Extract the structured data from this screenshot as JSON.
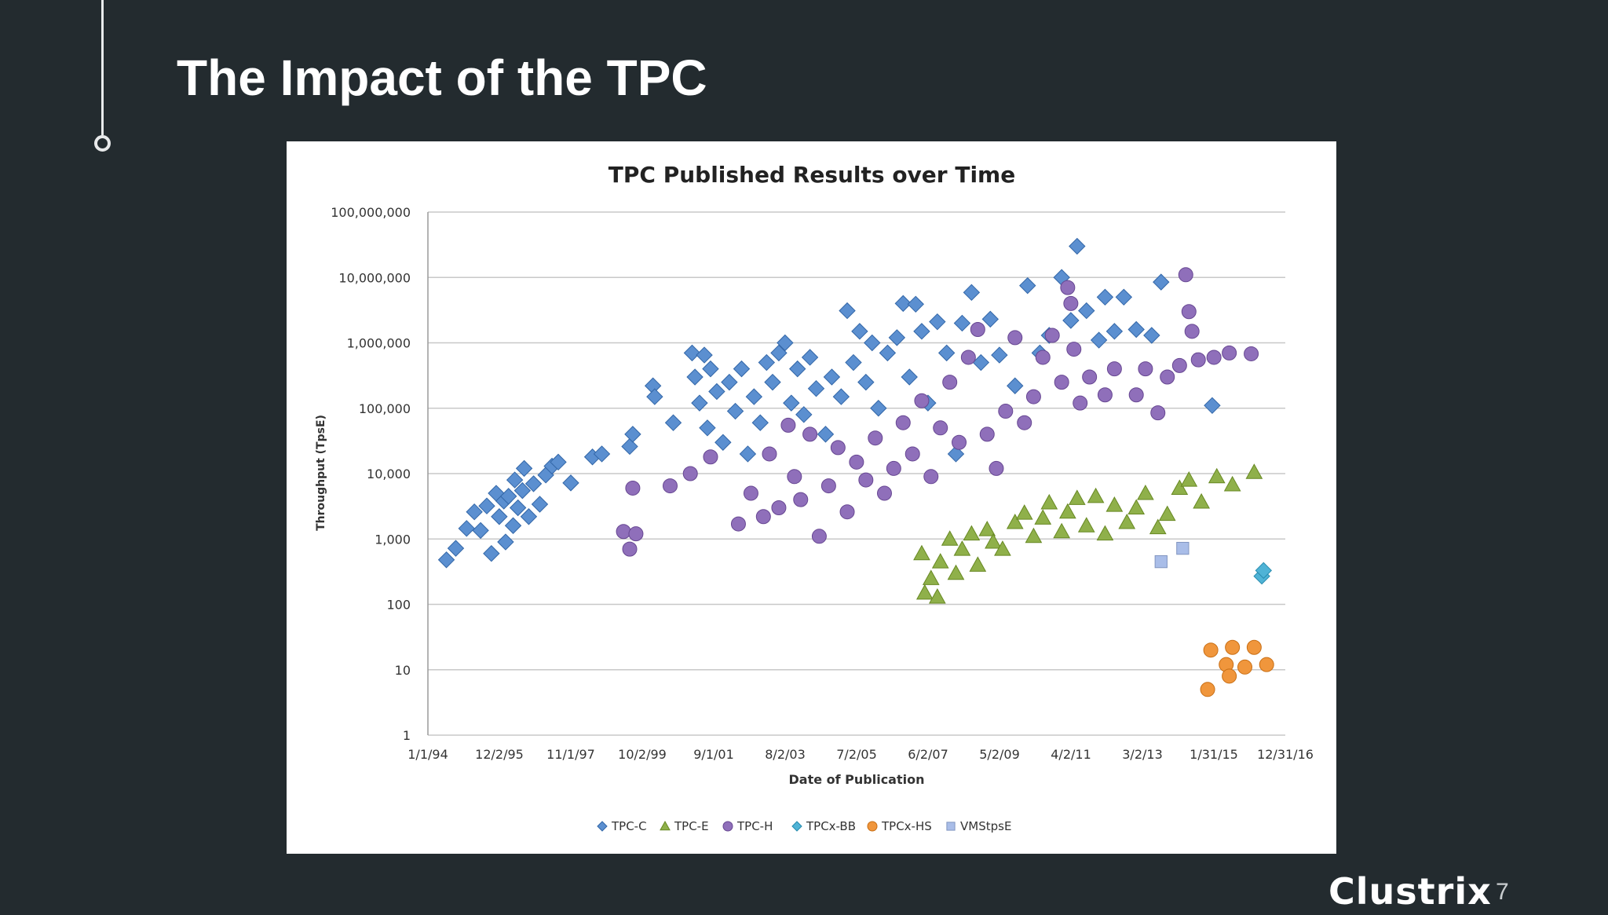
{
  "slide": {
    "title": "The Impact of the TPC",
    "logo_text": "Clustrix",
    "page_number": "7"
  },
  "colors": {
    "background": "#232b2f",
    "title": "#ffffff",
    "grid": "#c8c8c8"
  },
  "chart_data": {
    "type": "scatter",
    "title": "TPC Published Results over Time",
    "xlabel": "Date of Publication",
    "ylabel": "Throughput (TpsE)",
    "yscale": "log",
    "ylim": [
      1,
      100000000
    ],
    "xlim": [
      "1994-01-01",
      "2016-12-31"
    ],
    "grid": "horizontal",
    "legend_position": "bottom",
    "x_tick_labels": [
      "1/1/94",
      "12/2/95",
      "11/1/97",
      "10/2/99",
      "9/1/01",
      "8/2/03",
      "7/2/05",
      "6/2/07",
      "5/2/09",
      "4/2/11",
      "3/2/13",
      "1/31/15",
      "12/31/16"
    ],
    "y_tick_labels": [
      "1",
      "10",
      "100",
      "1,000",
      "10,000",
      "100,000",
      "1,000,000",
      "10,000,000",
      "100,000,000"
    ],
    "series": [
      {
        "name": "TPC-C",
        "marker": "diamond",
        "color": "#5b8fd0",
        "points": [
          [
            "1994-07-01",
            480
          ],
          [
            "1994-10-01",
            720
          ],
          [
            "1995-01-15",
            1450
          ],
          [
            "1995-04-01",
            2600
          ],
          [
            "1995-06-01",
            1350
          ],
          [
            "1995-08-01",
            3200
          ],
          [
            "1995-09-15",
            600
          ],
          [
            "1995-11-01",
            5000
          ],
          [
            "1995-12-01",
            2200
          ],
          [
            "1996-01-15",
            3800
          ],
          [
            "1996-02-01",
            900
          ],
          [
            "1996-03-01",
            4500
          ],
          [
            "1996-04-15",
            1600
          ],
          [
            "1996-05-01",
            8000
          ],
          [
            "1996-06-01",
            3000
          ],
          [
            "1996-07-15",
            5500
          ],
          [
            "1996-08-01",
            12000
          ],
          [
            "1996-09-15",
            2200
          ],
          [
            "1996-11-01",
            7000
          ],
          [
            "1997-01-01",
            3400
          ],
          [
            "1997-03-01",
            9500
          ],
          [
            "1997-05-01",
            13000
          ],
          [
            "1997-07-01",
            15000
          ],
          [
            "1997-11-01",
            7200
          ],
          [
            "1998-06-01",
            18000
          ],
          [
            "1998-09-01",
            20000
          ],
          [
            "1999-06-01",
            26000
          ],
          [
            "1999-07-01",
            40000
          ],
          [
            "2000-01-15",
            220000
          ],
          [
            "2000-02-01",
            150000
          ],
          [
            "2000-08-01",
            60000
          ],
          [
            "2001-02-01",
            700000
          ],
          [
            "2001-03-01",
            300000
          ],
          [
            "2001-04-15",
            120000
          ],
          [
            "2001-06-01",
            650000
          ],
          [
            "2001-07-01",
            50000
          ],
          [
            "2001-08-01",
            400000
          ],
          [
            "2001-10-01",
            180000
          ],
          [
            "2001-12-01",
            30000
          ],
          [
            "2002-02-01",
            250000
          ],
          [
            "2002-04-01",
            90000
          ],
          [
            "2002-06-01",
            400000
          ],
          [
            "2002-08-01",
            20000
          ],
          [
            "2002-10-01",
            150000
          ],
          [
            "2002-12-01",
            60000
          ],
          [
            "2003-02-01",
            500000
          ],
          [
            "2003-04-01",
            250000
          ],
          [
            "2003-06-01",
            700000
          ],
          [
            "2003-08-01",
            1000000
          ],
          [
            "2003-10-01",
            120000
          ],
          [
            "2003-12-01",
            400000
          ],
          [
            "2004-02-01",
            80000
          ],
          [
            "2004-04-01",
            600000
          ],
          [
            "2004-06-01",
            200000
          ],
          [
            "2004-09-01",
            40000
          ],
          [
            "2004-11-01",
            300000
          ],
          [
            "2005-02-01",
            150000
          ],
          [
            "2005-04-01",
            3100000
          ],
          [
            "2005-06-01",
            500000
          ],
          [
            "2005-08-01",
            1500000
          ],
          [
            "2005-10-01",
            250000
          ],
          [
            "2005-12-01",
            1000000
          ],
          [
            "2006-02-01",
            100000
          ],
          [
            "2006-05-01",
            700000
          ],
          [
            "2006-08-01",
            1200000
          ],
          [
            "2006-10-01",
            4000000
          ],
          [
            "2006-12-01",
            300000
          ],
          [
            "2007-02-01",
            3900000
          ],
          [
            "2007-04-01",
            1500000
          ],
          [
            "2007-06-01",
            120000
          ],
          [
            "2007-09-01",
            2100000
          ],
          [
            "2007-12-01",
            700000
          ],
          [
            "2008-03-01",
            20000
          ],
          [
            "2008-05-01",
            2000000
          ],
          [
            "2008-08-01",
            5900000
          ],
          [
            "2008-11-01",
            500000
          ],
          [
            "2009-02-01",
            2300000
          ],
          [
            "2009-05-01",
            650000
          ],
          [
            "2009-10-01",
            220000
          ],
          [
            "2010-02-01",
            7500000
          ],
          [
            "2010-06-01",
            700000
          ],
          [
            "2010-09-01",
            1300000
          ],
          [
            "2011-01-01",
            10000000
          ],
          [
            "2011-04-01",
            2200000
          ],
          [
            "2011-06-01",
            30000000
          ],
          [
            "2011-09-01",
            3100000
          ],
          [
            "2012-01-01",
            1100000
          ],
          [
            "2012-03-01",
            5000000
          ],
          [
            "2012-06-01",
            1500000
          ],
          [
            "2012-09-01",
            5000000
          ],
          [
            "2013-01-01",
            1600000
          ],
          [
            "2013-06-01",
            1300000
          ],
          [
            "2013-09-01",
            8500000
          ],
          [
            "2015-01-15",
            110000
          ]
        ]
      },
      {
        "name": "TPC-E",
        "marker": "triangle",
        "color": "#8fb04a",
        "points": [
          [
            "2007-04-01",
            600
          ],
          [
            "2007-05-01",
            150
          ],
          [
            "2007-07-01",
            250
          ],
          [
            "2007-09-01",
            130
          ],
          [
            "2007-10-01",
            450
          ],
          [
            "2008-01-01",
            1000
          ],
          [
            "2008-03-01",
            300
          ],
          [
            "2008-05-01",
            700
          ],
          [
            "2008-08-01",
            1200
          ],
          [
            "2008-10-01",
            400
          ],
          [
            "2009-01-01",
            1400
          ],
          [
            "2009-03-01",
            900
          ],
          [
            "2009-06-01",
            700
          ],
          [
            "2009-10-01",
            1800
          ],
          [
            "2010-01-01",
            2500
          ],
          [
            "2010-04-01",
            1100
          ],
          [
            "2010-07-01",
            2100
          ],
          [
            "2010-09-01",
            3600
          ],
          [
            "2011-01-01",
            1300
          ],
          [
            "2011-03-01",
            2600
          ],
          [
            "2011-06-01",
            4200
          ],
          [
            "2011-09-01",
            1600
          ],
          [
            "2011-12-01",
            4500
          ],
          [
            "2012-03-01",
            1200
          ],
          [
            "2012-06-01",
            3300
          ],
          [
            "2012-10-01",
            1800
          ],
          [
            "2013-01-01",
            3000
          ],
          [
            "2013-04-01",
            5000
          ],
          [
            "2013-08-01",
            1500
          ],
          [
            "2013-11-01",
            2400
          ],
          [
            "2014-03-01",
            6000
          ],
          [
            "2014-06-01",
            8000
          ],
          [
            "2014-10-01",
            3700
          ],
          [
            "2015-03-01",
            9000
          ],
          [
            "2015-08-01",
            6800
          ],
          [
            "2016-03-01",
            10500
          ]
        ]
      },
      {
        "name": "TPC-H",
        "marker": "circle",
        "color": "#8f6fba",
        "points": [
          [
            "1999-04-01",
            1300
          ],
          [
            "1999-06-01",
            700
          ],
          [
            "1999-07-01",
            6000
          ],
          [
            "1999-08-01",
            1200
          ],
          [
            "2000-07-01",
            6500
          ],
          [
            "2001-01-15",
            10000
          ],
          [
            "2001-08-01",
            18000
          ],
          [
            "2002-05-01",
            1700
          ],
          [
            "2002-09-01",
            5000
          ],
          [
            "2003-01-01",
            2200
          ],
          [
            "2003-03-01",
            20000
          ],
          [
            "2003-06-01",
            3000
          ],
          [
            "2003-09-01",
            55000
          ],
          [
            "2003-11-01",
            9000
          ],
          [
            "2004-01-01",
            4000
          ],
          [
            "2004-04-01",
            40000
          ],
          [
            "2004-07-01",
            1100
          ],
          [
            "2004-10-01",
            6500
          ],
          [
            "2005-01-01",
            25000
          ],
          [
            "2005-04-01",
            2600
          ],
          [
            "2005-07-01",
            15000
          ],
          [
            "2005-10-01",
            8000
          ],
          [
            "2006-01-01",
            35000
          ],
          [
            "2006-04-01",
            5000
          ],
          [
            "2006-07-01",
            12000
          ],
          [
            "2006-10-01",
            60000
          ],
          [
            "2007-01-01",
            20000
          ],
          [
            "2007-04-01",
            130000
          ],
          [
            "2007-07-01",
            9000
          ],
          [
            "2007-10-01",
            50000
          ],
          [
            "2008-01-01",
            250000
          ],
          [
            "2008-04-01",
            30000
          ],
          [
            "2008-07-01",
            600000
          ],
          [
            "2008-10-01",
            1600000
          ],
          [
            "2009-01-01",
            40000
          ],
          [
            "2009-04-01",
            12000
          ],
          [
            "2009-07-01",
            90000
          ],
          [
            "2009-10-01",
            1200000
          ],
          [
            "2010-01-01",
            60000
          ],
          [
            "2010-04-01",
            150000
          ],
          [
            "2010-07-01",
            600000
          ],
          [
            "2010-10-01",
            1300000
          ],
          [
            "2011-01-01",
            250000
          ],
          [
            "2011-03-01",
            7000000
          ],
          [
            "2011-04-01",
            4000000
          ],
          [
            "2011-05-01",
            800000
          ],
          [
            "2011-07-01",
            120000
          ],
          [
            "2011-10-01",
            300000
          ],
          [
            "2012-03-01",
            160000
          ],
          [
            "2012-06-01",
            400000
          ],
          [
            "2013-01-01",
            160000
          ],
          [
            "2013-04-01",
            400000
          ],
          [
            "2013-08-01",
            85000
          ],
          [
            "2013-11-01",
            300000
          ],
          [
            "2014-03-01",
            450000
          ],
          [
            "2014-05-01",
            11000000
          ],
          [
            "2014-06-01",
            3000000
          ],
          [
            "2014-07-01",
            1500000
          ],
          [
            "2014-09-01",
            550000
          ],
          [
            "2015-02-01",
            600000
          ],
          [
            "2015-07-01",
            700000
          ],
          [
            "2016-02-01",
            680000
          ]
        ]
      },
      {
        "name": "TPCx-BB",
        "marker": "diamond",
        "color": "#4fb3d6",
        "points": [
          [
            "2016-05-15",
            270
          ],
          [
            "2016-06-01",
            330
          ]
        ]
      },
      {
        "name": "TPCx-HS",
        "marker": "circle",
        "color": "#f0963c",
        "points": [
          [
            "2014-12-01",
            5
          ],
          [
            "2015-01-01",
            20
          ],
          [
            "2015-06-01",
            12
          ],
          [
            "2015-07-01",
            8
          ],
          [
            "2015-08-01",
            22
          ],
          [
            "2015-12-01",
            11
          ],
          [
            "2016-03-01",
            22
          ],
          [
            "2016-07-01",
            12
          ]
        ]
      },
      {
        "name": "VMStpsE",
        "marker": "square",
        "color": "#a9bde8",
        "points": [
          [
            "2013-09-01",
            450
          ],
          [
            "2014-04-01",
            720
          ]
        ]
      }
    ]
  }
}
